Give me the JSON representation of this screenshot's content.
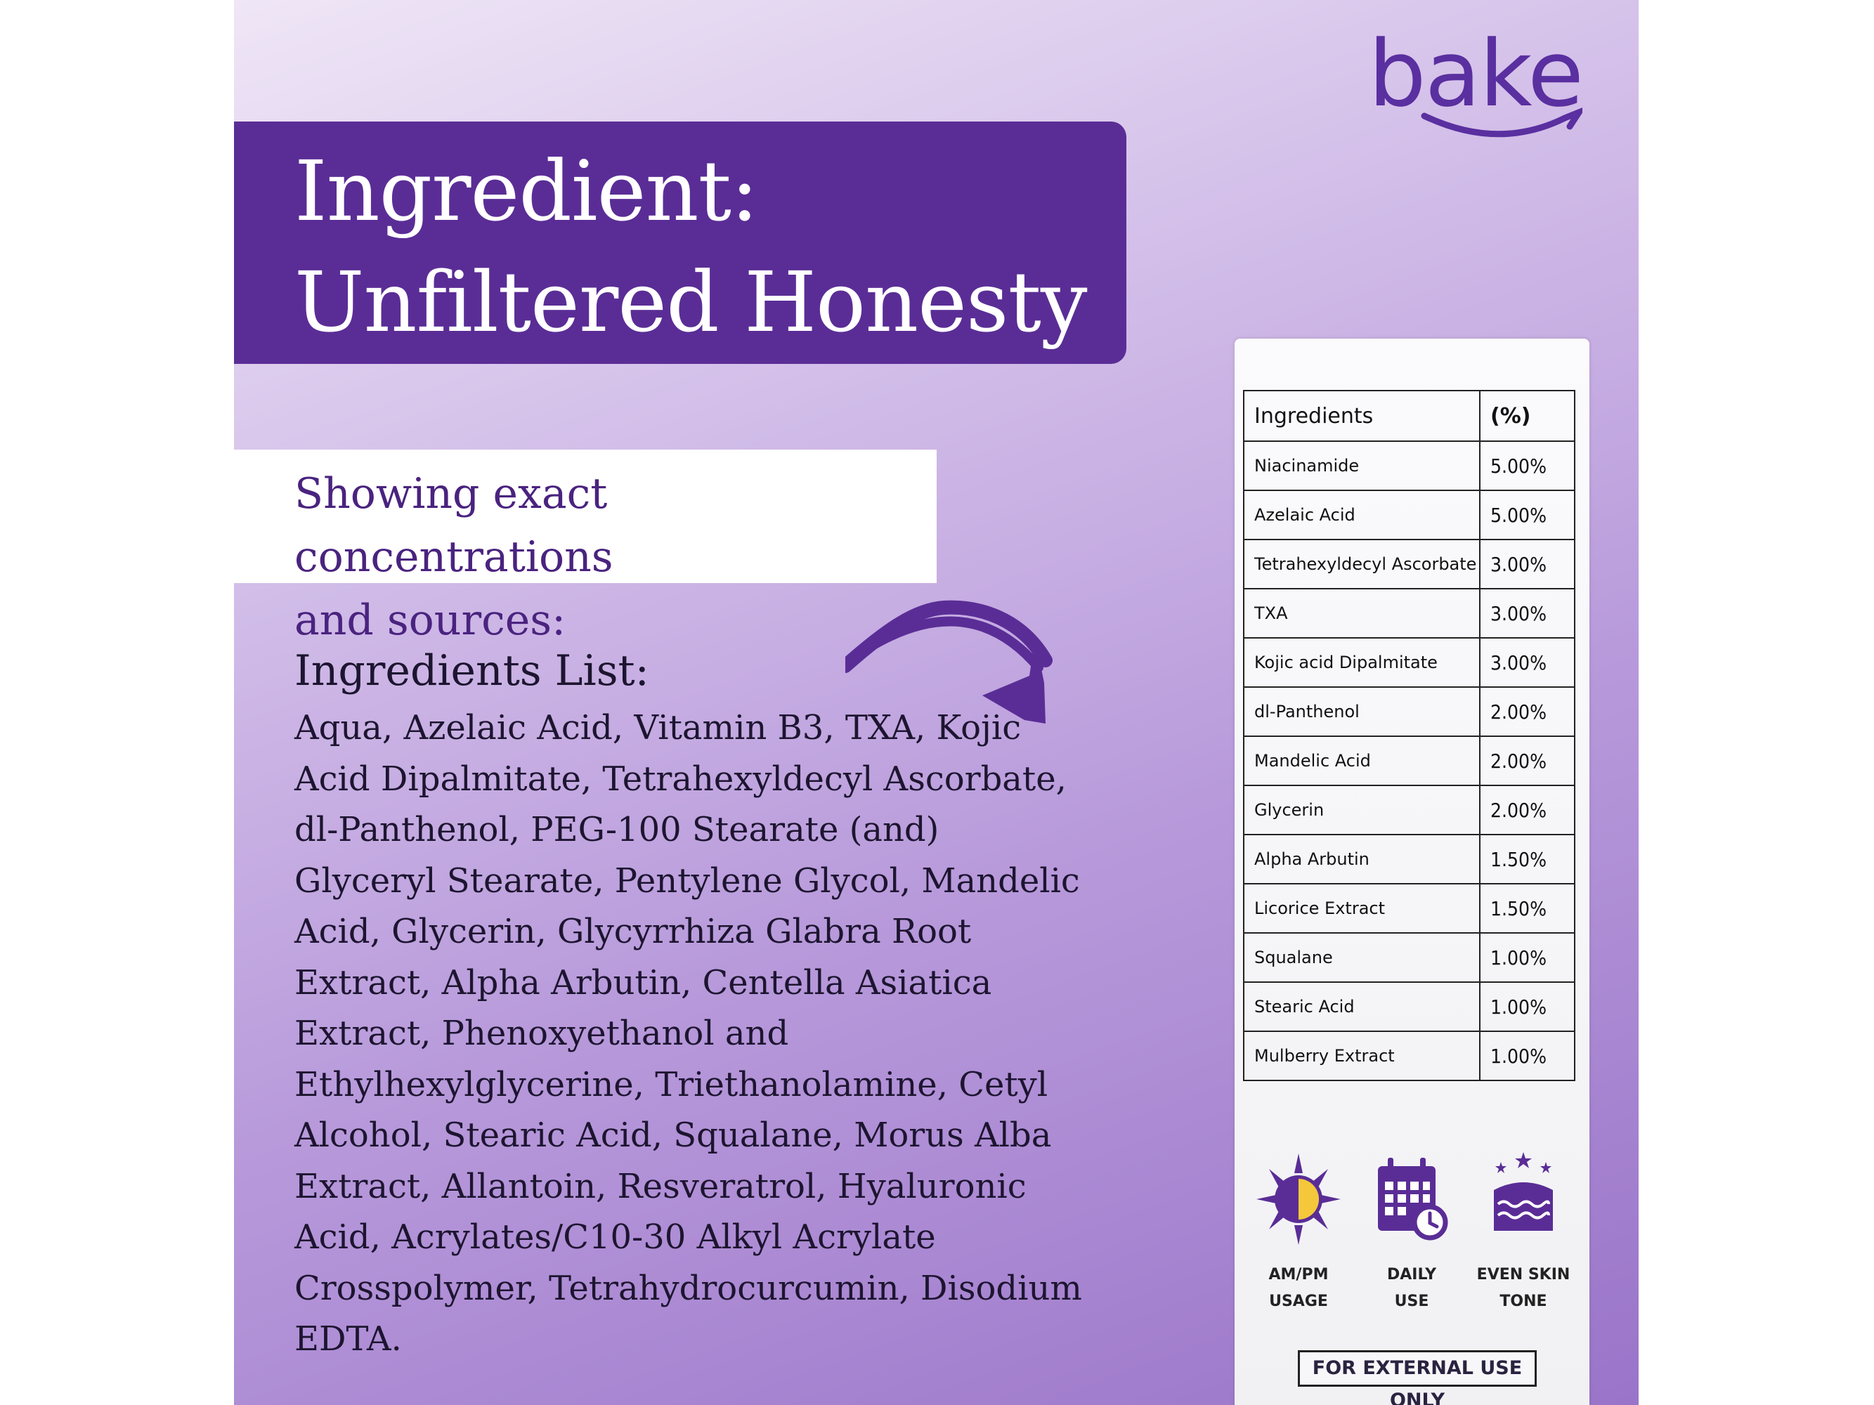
{
  "brand": {
    "name": "bake"
  },
  "title": {
    "line1": "Ingredient:",
    "line2": "Unfiltered Honesty"
  },
  "subtitle": {
    "line1": "Showing exact concentrations",
    "line2": "and sources:"
  },
  "ingredients_list": {
    "heading": "Ingredients List:",
    "text": "Aqua, Azelaic Acid, Vitamin B3, TXA, Kojic Acid Dipalmitate, Tetrahexyldecyl Ascorbate, dl-Panthenol, PEG-100 Stearate (and) Glyceryl Stearate, Pentylene Glycol, Mandelic Acid, Glycerin, Glycyrrhiza Glabra Root Extract, Alpha Arbutin, Centella Asiatica Extract, Phenoxyethanol and Ethylhexylglycerine, Triethanolamine, Cetyl Alcohol, Stearic Acid, Squalane, Morus Alba Extract, Allantoin, Resveratrol, Hyaluronic Acid, Acrylates/C10-30 Alkyl Acrylate Crosspolymer, Tetrahydrocurcumin, Disodium EDTA."
  },
  "table": {
    "header_name": "Ingredients",
    "header_pct": "(%)",
    "rows": [
      {
        "name": "Niacinamide",
        "pct": "5.00%"
      },
      {
        "name": "Azelaic Acid",
        "pct": "5.00%"
      },
      {
        "name": "Tetrahexyldecyl Ascorbate",
        "pct": "3.00%"
      },
      {
        "name": "TXA",
        "pct": "3.00%"
      },
      {
        "name": "Kojic acid Dipalmitate",
        "pct": "3.00%"
      },
      {
        "name": "dl-Panthenol",
        "pct": "2.00%"
      },
      {
        "name": "Mandelic Acid",
        "pct": "2.00%"
      },
      {
        "name": "Glycerin",
        "pct": "2.00%"
      },
      {
        "name": "Alpha Arbutin",
        "pct": "1.50%"
      },
      {
        "name": "Licorice Extract",
        "pct": "1.50%"
      },
      {
        "name": "Squalane",
        "pct": "1.00%"
      },
      {
        "name": "Stearic Acid",
        "pct": "1.00%"
      },
      {
        "name": "Mulberry Extract",
        "pct": "1.00%"
      }
    ]
  },
  "badges": [
    {
      "icon": "sun-moon-icon",
      "line1": "AM/PM",
      "line2": "USAGE"
    },
    {
      "icon": "calendar-clock-icon",
      "line1": "DAILY",
      "line2": "USE"
    },
    {
      "icon": "skin-layers-icon",
      "line1": "EVEN SKIN",
      "line2": "TONE"
    }
  ],
  "notice": "FOR EXTERNAL USE ONLY",
  "colors": {
    "brand_purple": "#5a2d96",
    "text_dark": "#1d1530"
  }
}
